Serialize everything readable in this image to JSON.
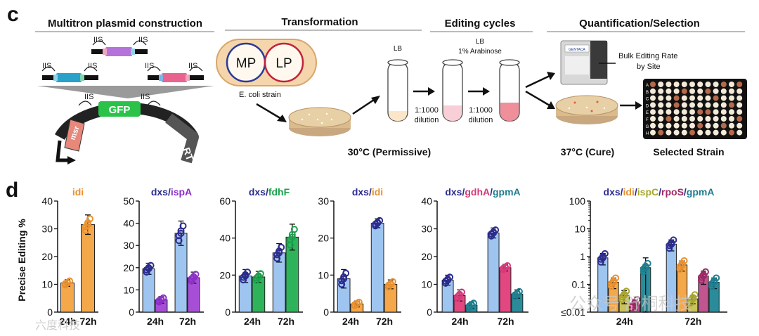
{
  "panel_c": {
    "label": "c",
    "sections": {
      "construction": "Multitron plasmid construction",
      "transformation": "Transformation",
      "editing": "Editing cycles",
      "quant": "Quantification/Selection"
    },
    "iis": "IIS",
    "gfp": "GFP",
    "msr": "msr",
    "rt": "RT",
    "mp": "MP",
    "lp": "LP",
    "ecoli": "E. coli strain",
    "lb1": "LB",
    "lb2": "LB",
    "arabinose": "1% Arabinose",
    "ratio1": "1:1000",
    "dilution1": "dilution",
    "ratio2": "1:1000",
    "dilution2": "dilution",
    "temp_permissive": "30°C (Permissive)",
    "temp_cure": "37°C (Cure)",
    "bulk_line1": "Bulk Editing Rate",
    "bulk_line2": "by Site",
    "selected": "Selected Strain",
    "instrument_label": "GENTACA",
    "plate_rows": [
      "A",
      "B",
      "C",
      "D",
      "E",
      "F",
      "G",
      "H"
    ]
  },
  "panel_d": {
    "label": "d",
    "ylabel": "Precise Editing %",
    "colors": {
      "idi": "#f4a84a",
      "dxs": "#2b2c8e",
      "dxs_bar": "#9ec4f0",
      "ispA": "#8c2fc9",
      "fdhF": "#19a14b",
      "gdhA": "#d63a79",
      "gpmA": "#1f7d8e",
      "ispC": "#a8a62c",
      "rpoS": "#9d2a67"
    },
    "watermark1": "公众号 舒桐科技",
    "watermark2": "六度科技"
  },
  "chart_data": [
    {
      "type": "bar",
      "title_parts": [
        {
          "text": "idi",
          "color": "#e8902f"
        }
      ],
      "categories": [
        "24h",
        "72h"
      ],
      "ylim": [
        0,
        40
      ],
      "yticks": [
        "0",
        "10",
        "20",
        "30",
        "40"
      ],
      "series": [
        {
          "name": "idi",
          "color": "#f4a84a",
          "values": [
            10.5,
            31.5
          ],
          "errors": [
            1.2,
            3.5
          ]
        }
      ]
    },
    {
      "type": "bar",
      "title_parts": [
        {
          "text": "dxs",
          "color": "#2b2c8e"
        },
        {
          "text": "/",
          "color": "#2b2c8e"
        },
        {
          "text": "ispA",
          "color": "#8c2fc9"
        }
      ],
      "categories": [
        "24h",
        "72h"
      ],
      "ylim": [
        0,
        50
      ],
      "yticks": [
        "0",
        "10",
        "20",
        "30",
        "40",
        "50"
      ],
      "series": [
        {
          "name": "dxs",
          "color": "#9ec4f0",
          "values": [
            19.5,
            35.5
          ],
          "errors": [
            2.5,
            5.5
          ]
        },
        {
          "name": "ispA",
          "color": "#a64fd6",
          "values": [
            5.5,
            15.5
          ],
          "errors": [
            1.5,
            2.5
          ]
        }
      ]
    },
    {
      "type": "bar",
      "title_parts": [
        {
          "text": "dxs",
          "color": "#2b2c8e"
        },
        {
          "text": "/",
          "color": "#2b2c8e"
        },
        {
          "text": "fdhF",
          "color": "#19a14b"
        }
      ],
      "categories": [
        "24h",
        "72h"
      ],
      "ylim": [
        0,
        60
      ],
      "yticks": [
        "0",
        "20",
        "40",
        "60"
      ],
      "series": [
        {
          "name": "dxs",
          "color": "#9ec4f0",
          "values": [
            19.5,
            32
          ],
          "errors": [
            3.5,
            5
          ]
        },
        {
          "name": "fdhF",
          "color": "#2fb35a",
          "values": [
            19,
            40.5
          ],
          "errors": [
            3,
            7
          ]
        }
      ]
    },
    {
      "type": "bar",
      "title_parts": [
        {
          "text": "dxs",
          "color": "#2b2c8e"
        },
        {
          "text": "/",
          "color": "#2b2c8e"
        },
        {
          "text": "idi",
          "color": "#e8902f"
        }
      ],
      "categories": [
        "24h",
        "72h"
      ],
      "ylim": [
        0,
        30
      ],
      "yticks": [
        "0",
        "10",
        "20",
        "30"
      ],
      "series": [
        {
          "name": "dxs",
          "color": "#9ec4f0",
          "values": [
            9,
            24
          ],
          "errors": [
            2.5,
            1.2
          ]
        },
        {
          "name": "idi",
          "color": "#f4a84a",
          "values": [
            2.2,
            7.5
          ],
          "errors": [
            0.8,
            1.2
          ]
        }
      ]
    },
    {
      "type": "bar",
      "title_parts": [
        {
          "text": "dxs",
          "color": "#2b2c8e"
        },
        {
          "text": "/",
          "color": "#2b2c8e"
        },
        {
          "text": "gdhA",
          "color": "#d63a79"
        },
        {
          "text": "/",
          "color": "#2b2c8e"
        },
        {
          "text": "gpmA",
          "color": "#1f7d8e"
        }
      ],
      "categories": [
        "24h",
        "72h"
      ],
      "ylim": [
        0,
        40
      ],
      "yticks": [
        "0",
        "10",
        "20",
        "30",
        "40"
      ],
      "series": [
        {
          "name": "dxs",
          "color": "#9ec4f0",
          "values": [
            11.5,
            28.5
          ],
          "errors": [
            1.8,
            1.8
          ]
        },
        {
          "name": "gdhA",
          "color": "#e2477f",
          "values": [
            6,
            16
          ],
          "errors": [
            2,
            1.2
          ]
        },
        {
          "name": "gpmA",
          "color": "#2a8c9a",
          "values": [
            2.5,
            6.5
          ],
          "errors": [
            1.2,
            1.5
          ]
        }
      ]
    },
    {
      "type": "bar",
      "log": true,
      "title_parts": [
        {
          "text": "dxs",
          "color": "#2b2c8e"
        },
        {
          "text": "/",
          "color": "#2b2c8e"
        },
        {
          "text": "idi",
          "color": "#e8902f"
        },
        {
          "text": "/",
          "color": "#2b2c8e"
        },
        {
          "text": "ispC",
          "color": "#a8a62c"
        },
        {
          "text": "/",
          "color": "#2b2c8e"
        },
        {
          "text": "rpoS",
          "color": "#9d2a67"
        },
        {
          "text": "/",
          "color": "#2b2c8e"
        },
        {
          "text": "gpmA",
          "color": "#1f7d8e"
        }
      ],
      "categories": [
        "24h",
        "72h"
      ],
      "ylim": [
        0.01,
        100
      ],
      "yticks": [
        "≤0.01",
        "0.1",
        "1",
        "10",
        "100"
      ],
      "series": [
        {
          "name": "dxs",
          "color": "#9ec4f0",
          "values": [
            0.9,
            2.8
          ],
          "errors": [
            0.4,
            1.2
          ]
        },
        {
          "name": "idi",
          "color": "#f4a84a",
          "values": [
            0.12,
            0.5
          ],
          "errors": [
            0.05,
            0.2
          ]
        },
        {
          "name": "ispC",
          "color": "#c8c35a",
          "values": [
            0.04,
            0.03
          ],
          "errors": [
            0.02,
            0.01
          ]
        },
        {
          "name": "rpoS",
          "color": "#c0558f",
          "values": [
            0.02,
            0.2
          ],
          "errors": [
            0.008,
            0.1
          ]
        },
        {
          "name": "gpmA",
          "color": "#2a8c9a",
          "values": [
            0.4,
            0.12
          ],
          "errors": [
            0.5,
            0.05
          ]
        }
      ]
    }
  ]
}
